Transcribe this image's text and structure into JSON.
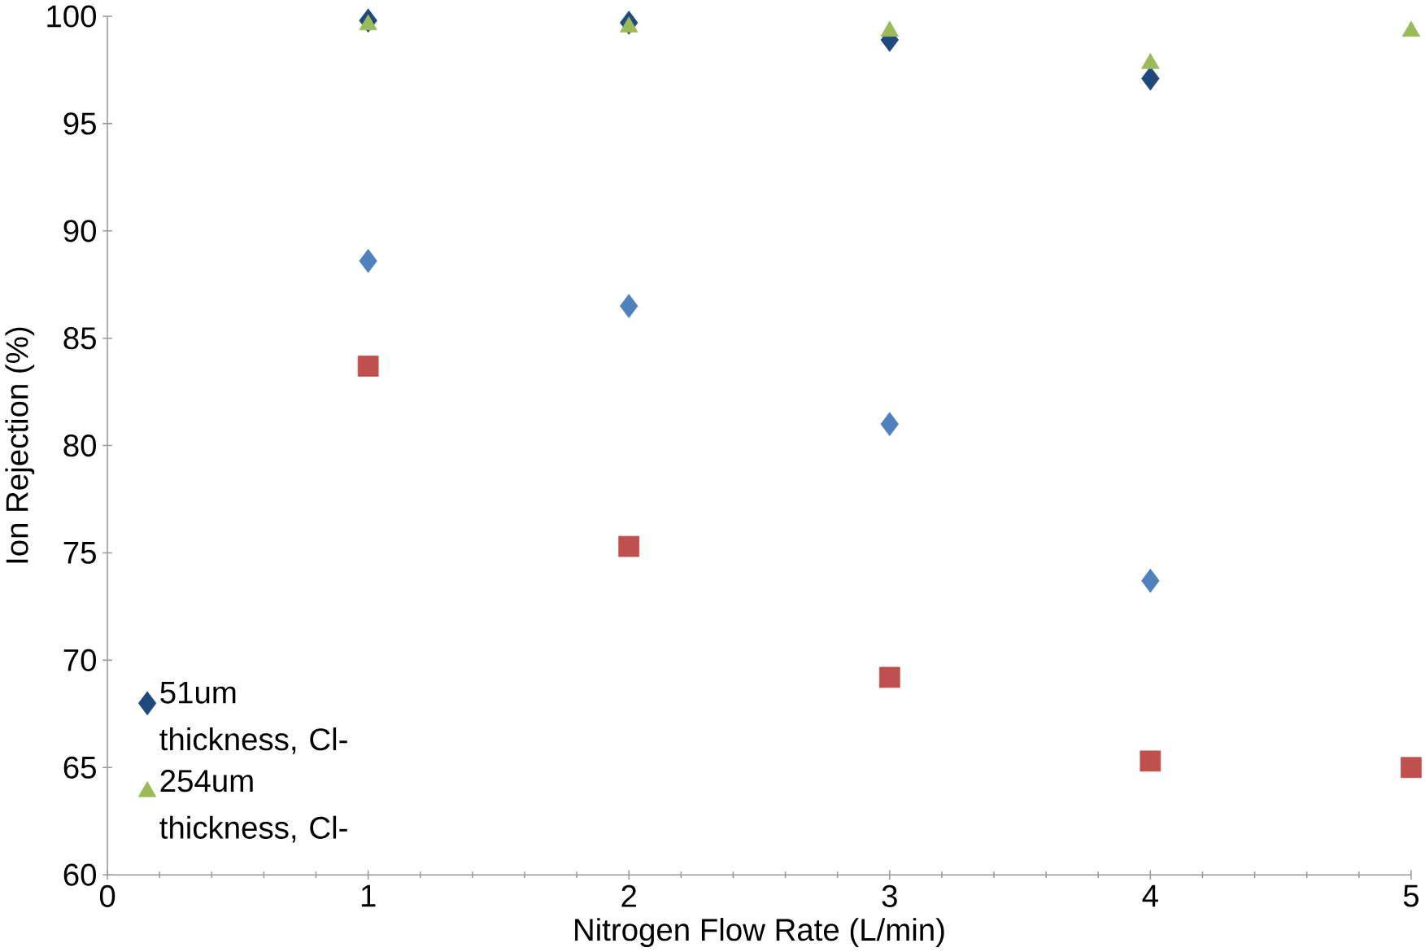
{
  "chart_data": {
    "type": "scatter",
    "xlabel": "Nitrogen Flow Rate (L/min)",
    "ylabel": "Ion Rejection (%)",
    "xlim": [
      0,
      5
    ],
    "xticks": [
      0,
      1,
      2,
      3,
      4,
      5
    ],
    "ylim": [
      60,
      100
    ],
    "yticks": [
      60,
      65,
      70,
      75,
      80,
      85,
      90,
      95,
      100
    ],
    "grid": false,
    "legend": "bottom left",
    "series": [
      {
        "name": "51um thickness, Cl-",
        "color": "#1f497d",
        "marker": "diamond",
        "x": [
          1,
          2,
          3,
          4
        ],
        "values": [
          99.8,
          99.7,
          98.9,
          97.1
        ]
      },
      {
        "name": "254um thickness, Cl-",
        "color": "#9bbb59",
        "marker": "triangle",
        "x": [
          1,
          2,
          3,
          4,
          5
        ],
        "values": [
          99.6,
          99.5,
          99.3,
          97.8,
          99.3
        ]
      },
      {
        "color": "#4f81bd",
        "marker": "diamond",
        "x": [
          1,
          2,
          3,
          4
        ],
        "values": [
          88.6,
          86.5,
          81.0,
          73.7
        ]
      },
      {
        "color": "#c0504d",
        "marker": "square",
        "x": [
          1,
          2,
          3,
          4,
          5
        ],
        "values": [
          83.7,
          75.3,
          69.2,
          65.3,
          65.0
        ]
      }
    ]
  }
}
